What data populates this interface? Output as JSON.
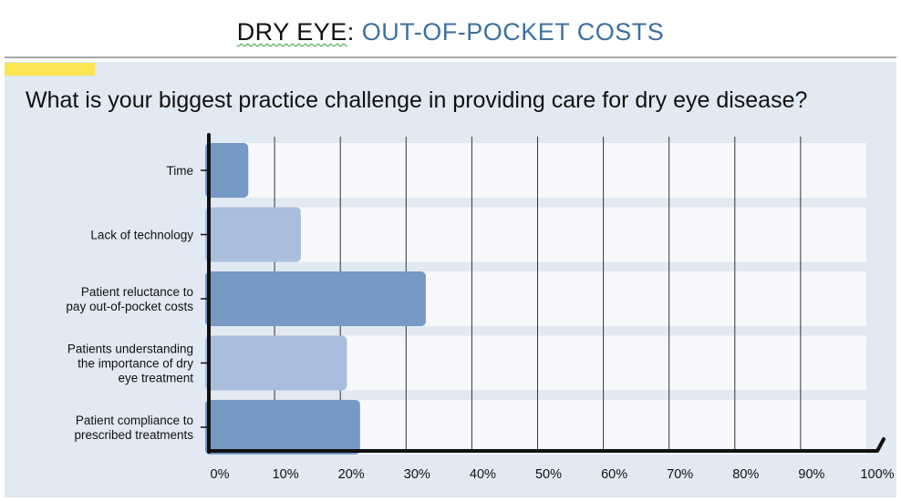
{
  "header": {
    "title_part1": "DRY EYE",
    "title_colon": ": ",
    "title_part2": "OUT-OF-POCKET COSTS"
  },
  "chart_data": {
    "type": "bar",
    "orientation": "horizontal",
    "title": "What is your biggest practice challenge in providing care for dry eye disease?",
    "categories": [
      [
        "Time"
      ],
      [
        "Lack of technology"
      ],
      [
        "Patient reluctance to",
        "pay out-of-pocket costs"
      ],
      [
        "Patients understanding",
        "the importance of dry",
        "eye treatment"
      ],
      [
        "Patient compliance to",
        "prescribed treatments"
      ]
    ],
    "values": [
      6,
      14,
      33,
      21,
      23
    ],
    "xlim": [
      0,
      100
    ],
    "xticks": [
      "0%",
      "10%",
      "20%",
      "30%",
      "40%",
      "50%",
      "60%",
      "70%",
      "80%",
      "90%",
      "100%"
    ],
    "grid": true,
    "colors": {
      "dark": "#7699c5",
      "light": "#a9bedd",
      "track": "#f7f8fb",
      "panel": "#e1e9f3"
    }
  }
}
